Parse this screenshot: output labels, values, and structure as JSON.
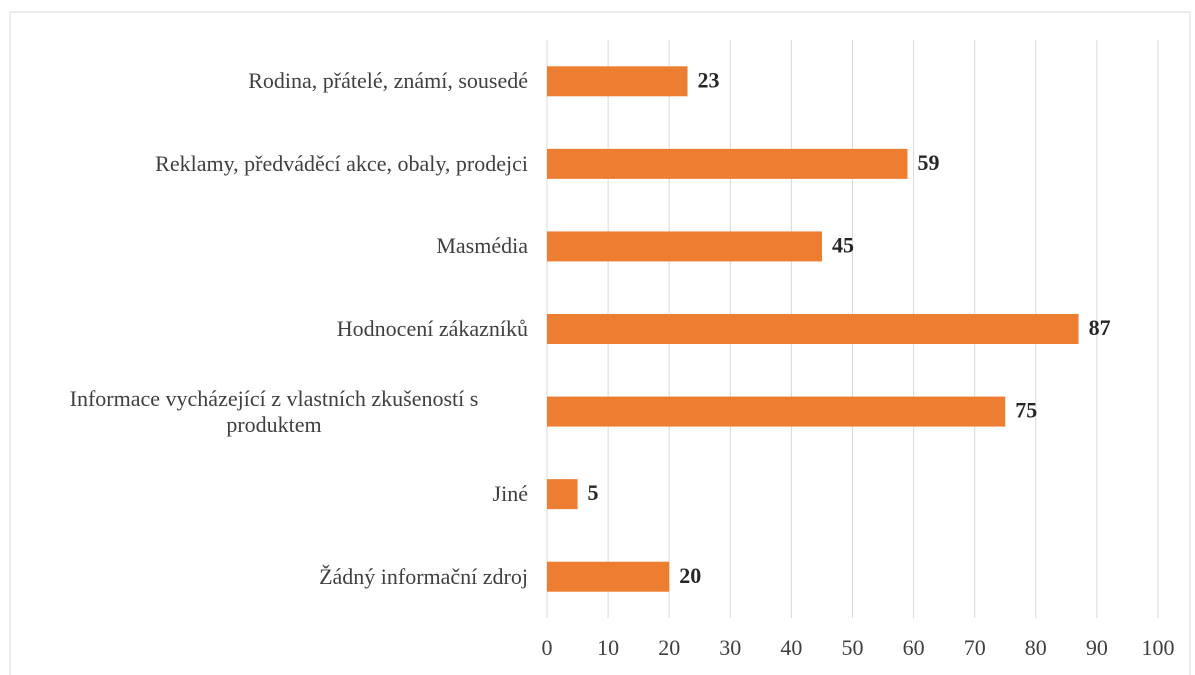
{
  "chart_data": {
    "type": "bar",
    "orientation": "horizontal",
    "categories": [
      "Rodina, přátelé, známí, sousedé",
      "Reklamy, předváděcí akce, obaly, prodejci",
      "Masmédia",
      "Hodnocení zákazníků",
      "Informace vycházející z vlastních zkušeností s produktem",
      "Jiné",
      "Žádný informační zdroj"
    ],
    "values": [
      23,
      59,
      45,
      87,
      75,
      5,
      20
    ],
    "color": "#ed7d31",
    "xlim": [
      0,
      100
    ],
    "xticks": [
      0,
      10,
      20,
      30,
      40,
      50,
      60,
      70,
      80,
      90,
      100
    ],
    "grid": true
  }
}
